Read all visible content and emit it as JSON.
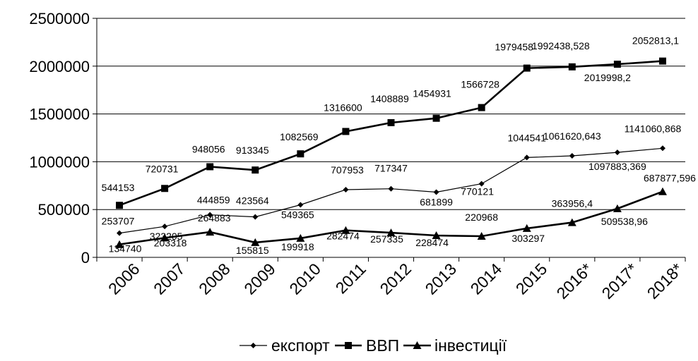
{
  "chart_data": {
    "type": "line",
    "categories": [
      "2006",
      "2007",
      "2008",
      "2009",
      "2010",
      "2011",
      "2012",
      "2013",
      "2014",
      "2015",
      "2016*",
      "2017*",
      "2018*"
    ],
    "ylim": [
      0,
      2500000
    ],
    "yticks": [
      0,
      500000,
      1000000,
      1500000,
      2000000,
      2500000
    ],
    "ytick_labels": [
      "0",
      "500000",
      "1000000",
      "1500000",
      "2000000",
      "2500000"
    ],
    "grid": true,
    "legend_position": "bottom",
    "series": [
      {
        "name": "експорт",
        "marker": "diamond",
        "color": "#000000",
        "values": [
          253707,
          323205,
          444859,
          423564,
          549365,
          707953,
          717347,
          681899,
          770121,
          1044541,
          1061620.643,
          1097883.369,
          1141060.868
        ],
        "labels": [
          "253707",
          "323205",
          "444859",
          "423564",
          "549365",
          "707953",
          "717347",
          "681899",
          "770121",
          "1044541",
          "1061620,643",
          "1097883,369",
          "1141060,868"
        ]
      },
      {
        "name": "ВВП",
        "marker": "square",
        "color": "#000000",
        "values": [
          544153,
          720731,
          948056,
          913345,
          1082569,
          1316600,
          1408889,
          1454931,
          1566728,
          1979458,
          1992438.528,
          2019998.2,
          2052813.1
        ],
        "labels": [
          "544153",
          "720731",
          "948056",
          "913345",
          "1082569",
          "1316600",
          "1408889",
          "1454931",
          "1566728",
          "1979458",
          "1992438,528",
          "2019998,2",
          "2052813,1"
        ]
      },
      {
        "name": "інвестиції",
        "marker": "triangle",
        "color": "#000000",
        "values": [
          134740,
          203318,
          264883,
          155815,
          199918,
          282474,
          257335,
          228474,
          220968,
          303297,
          363956.4,
          509538.96,
          687877.596
        ],
        "labels": [
          "134740",
          "203318",
          "264883",
          "155815",
          "199918",
          "282474",
          "257335",
          "228474",
          "220968",
          "303297",
          "363956,4",
          "509538,96",
          "687877,596"
        ]
      }
    ]
  }
}
